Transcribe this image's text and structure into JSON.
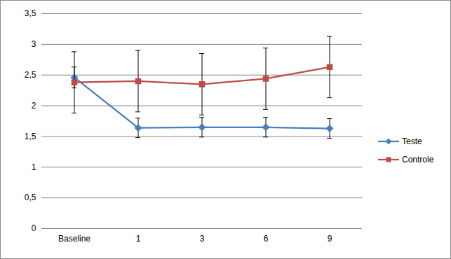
{
  "chart_data": {
    "type": "line",
    "categories": [
      "Baseline",
      "1",
      "3",
      "6",
      "9"
    ],
    "series": [
      {
        "name": "Teste",
        "color": "#4a7ebb",
        "marker": "diamond",
        "values": [
          2.46,
          1.64,
          1.65,
          1.65,
          1.63
        ],
        "errors": [
          0.17,
          0.16,
          0.16,
          0.16,
          0.16
        ]
      },
      {
        "name": "Controle",
        "color": "#be4b48",
        "marker": "square",
        "values": [
          2.38,
          2.4,
          2.35,
          2.44,
          2.63
        ],
        "errors": [
          0.5,
          0.5,
          0.5,
          0.5,
          0.5
        ]
      }
    ],
    "ylim": [
      0,
      3.5
    ],
    "yticks": [
      0,
      {
        "value": 0.5,
        "label": "0,5"
      },
      1,
      {
        "value": 1.5,
        "label": "1,5"
      },
      2,
      {
        "value": 2.5,
        "label": "2,5"
      },
      3,
      {
        "value": 3.5,
        "label": "3,5"
      }
    ],
    "grid": true,
    "legend": "right"
  }
}
